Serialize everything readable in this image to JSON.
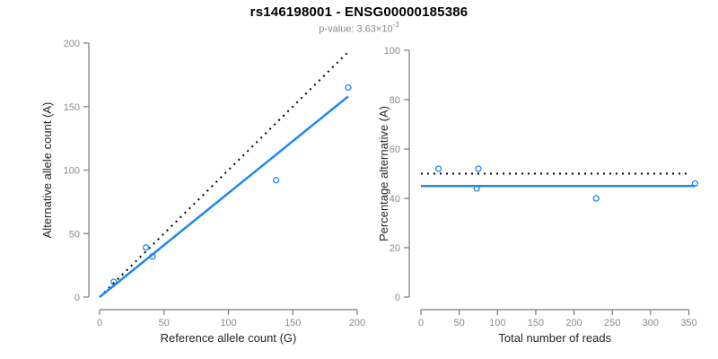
{
  "header": {
    "title": "rs146198001 - ENSG00000185386",
    "p_value_label": "p-value: 3.63×10",
    "p_value_exponent": "-3"
  },
  "colors": {
    "accent_blue": "#1E87F0",
    "line_black": "#000000",
    "axis_gray": "#7a7a7a",
    "tick_label_gray": "#8c8c8c",
    "axis_title_color": "#262626"
  },
  "chart_data": [
    {
      "type": "scatter",
      "title": "",
      "xlabel": "Reference allele count (G)",
      "ylabel": "Alternative allele count (A)",
      "xlim": [
        0,
        200
      ],
      "ylim": [
        0,
        200
      ],
      "xticks": [
        0,
        50,
        100,
        150,
        200
      ],
      "yticks": [
        0,
        50,
        100,
        150,
        200
      ],
      "grid": false,
      "points": [
        [
          11,
          12
        ],
        [
          36,
          39
        ],
        [
          41,
          32
        ],
        [
          137,
          92
        ],
        [
          193,
          165
        ]
      ],
      "lines": [
        {
          "name": "identity-line",
          "style": "dotted",
          "color": "#000000",
          "from": [
            0,
            0
          ],
          "to": [
            192,
            192
          ]
        },
        {
          "name": "fit-line",
          "style": "solid",
          "color": "#1E87F0",
          "from": [
            0,
            0
          ],
          "to": [
            193,
            158
          ]
        }
      ],
      "marker": {
        "shape": "open-circle",
        "color": "#1E87F0",
        "radius": 3
      }
    },
    {
      "type": "scatter",
      "title": "",
      "xlabel": "Total number of reads",
      "ylabel": "Percentage alternative (A)",
      "xlim": [
        0,
        350
      ],
      "ylim": [
        0,
        100
      ],
      "xticks": [
        0,
        50,
        100,
        150,
        200,
        250,
        300,
        350
      ],
      "yticks": [
        0,
        20,
        40,
        60,
        80,
        100
      ],
      "grid": false,
      "points": [
        [
          23,
          52
        ],
        [
          75,
          52
        ],
        [
          73,
          44
        ],
        [
          229,
          40
        ],
        [
          358,
          46
        ]
      ],
      "lines": [
        {
          "name": "expected-line",
          "style": "dotted",
          "color": "#000000",
          "from": [
            0,
            50
          ],
          "to": [
            351,
            50
          ]
        },
        {
          "name": "fit-line",
          "style": "solid",
          "color": "#1E87F0",
          "from": [
            0,
            45
          ],
          "to": [
            358,
            45
          ]
        }
      ],
      "marker": {
        "shape": "open-circle",
        "color": "#1E87F0",
        "radius": 3
      }
    }
  ]
}
